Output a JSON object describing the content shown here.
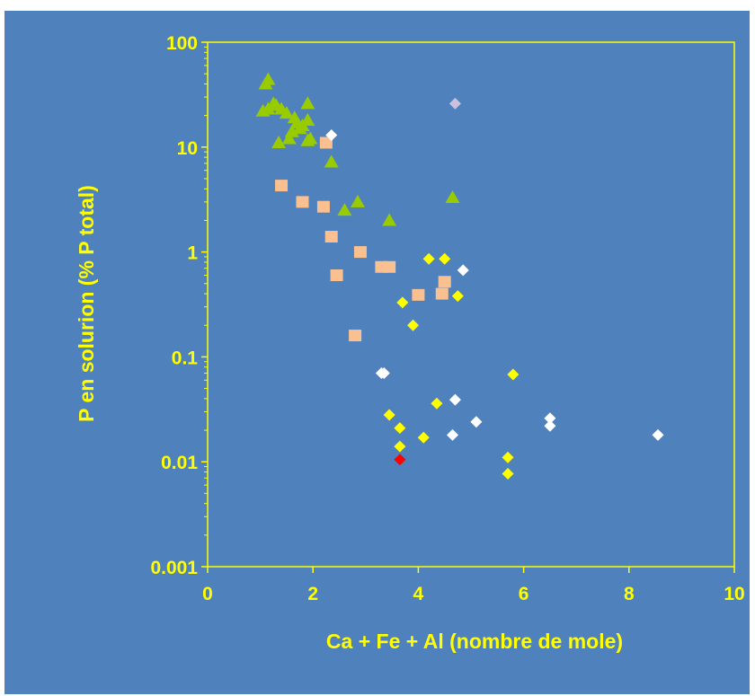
{
  "chart_data": {
    "type": "scatter",
    "title": "",
    "xlabel": "Ca + Fe + Al (nombre de mole)",
    "ylabel": "P en solurion (% P total)",
    "xlim": [
      0,
      10
    ],
    "ylim": [
      0.001,
      100
    ],
    "y_scale": "log",
    "grid": false,
    "legend": "none",
    "x_ticks": [
      "0",
      "2",
      "4",
      "6",
      "8",
      "10"
    ],
    "y_ticks": [
      "0.001",
      "0.01",
      "0.1",
      "1",
      "10",
      "100"
    ],
    "series": [
      {
        "marker": "triangle",
        "color": "#99cc00",
        "points": [
          [
            1.1,
            40
          ],
          [
            1.15,
            44
          ],
          [
            1.05,
            22
          ],
          [
            1.15,
            23
          ],
          [
            1.25,
            26
          ],
          [
            1.3,
            25
          ],
          [
            1.35,
            11
          ],
          [
            1.4,
            23
          ],
          [
            1.5,
            21
          ],
          [
            1.55,
            12
          ],
          [
            1.6,
            14
          ],
          [
            1.65,
            19
          ],
          [
            1.7,
            17
          ],
          [
            1.75,
            15
          ],
          [
            1.8,
            16
          ],
          [
            1.9,
            26
          ],
          [
            1.9,
            18
          ],
          [
            1.95,
            12
          ],
          [
            1.9,
            11.5
          ],
          [
            2.35,
            7.2
          ],
          [
            2.6,
            2.5
          ],
          [
            2.85,
            3.0
          ],
          [
            3.45,
            2.0
          ],
          [
            4.65,
            3.3
          ]
        ]
      },
      {
        "marker": "square",
        "color": "#fac090",
        "points": [
          [
            1.4,
            4.3
          ],
          [
            1.8,
            3.0
          ],
          [
            2.2,
            2.7
          ],
          [
            2.25,
            11
          ],
          [
            2.35,
            1.4
          ],
          [
            2.45,
            0.6
          ],
          [
            2.8,
            0.16
          ],
          [
            2.9,
            1.0
          ],
          [
            3.3,
            0.72
          ],
          [
            3.45,
            0.72
          ],
          [
            4.0,
            0.39
          ],
          [
            4.45,
            0.4
          ],
          [
            4.5,
            0.52
          ]
        ]
      },
      {
        "marker": "diamond",
        "color": "#ffff00",
        "points": [
          [
            3.7,
            0.33
          ],
          [
            3.9,
            0.2
          ],
          [
            4.2,
            0.86
          ],
          [
            4.5,
            0.86
          ],
          [
            4.75,
            0.38
          ],
          [
            3.45,
            0.028
          ],
          [
            3.65,
            0.021
          ],
          [
            3.65,
            0.014
          ],
          [
            4.1,
            0.017
          ],
          [
            4.35,
            0.036
          ],
          [
            5.7,
            0.011
          ],
          [
            5.7,
            0.0077
          ],
          [
            5.8,
            0.068
          ]
        ]
      },
      {
        "marker": "diamond",
        "color": "#ffffff",
        "points": [
          [
            2.35,
            13
          ],
          [
            4.85,
            0.67
          ],
          [
            3.3,
            0.07
          ],
          [
            3.35,
            0.07
          ],
          [
            4.7,
            0.039
          ],
          [
            4.65,
            0.018
          ],
          [
            5.1,
            0.024
          ],
          [
            6.5,
            0.026
          ],
          [
            6.5,
            0.022
          ],
          [
            8.55,
            0.018
          ]
        ]
      },
      {
        "marker": "diamond",
        "color": "#ccc0da",
        "points": [
          [
            4.7,
            26
          ]
        ]
      },
      {
        "marker": "diamond",
        "color": "#ff0000",
        "points": [
          [
            3.65,
            0.0105
          ]
        ]
      }
    ]
  },
  "style": {
    "frame_bg": "#4f81bd",
    "axis_color": "#ffff00",
    "text_color": "#ffff00"
  }
}
